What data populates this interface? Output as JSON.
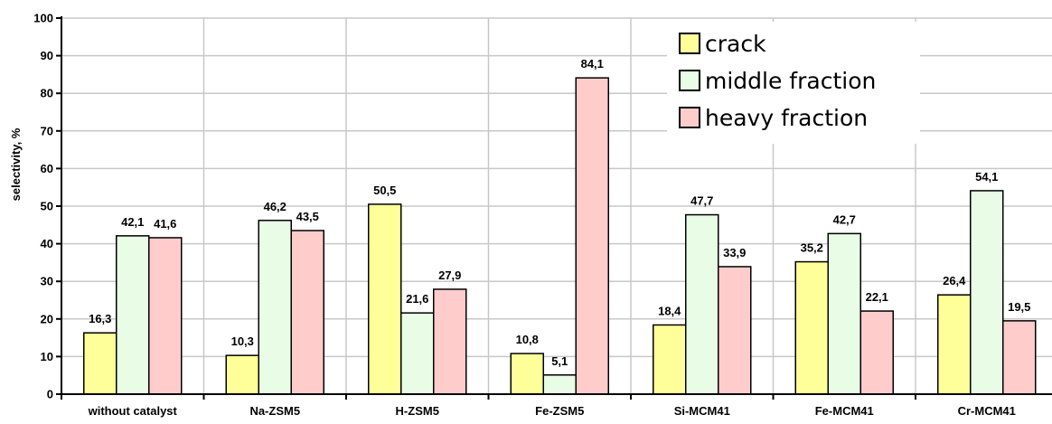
{
  "chart_data": {
    "type": "bar",
    "ylabel": "selectivity, %",
    "xlabel": "",
    "ylim": [
      0,
      100
    ],
    "yticks": [
      "0",
      "10",
      "20",
      "30",
      "40",
      "50",
      "60",
      "70",
      "80",
      "90",
      "100"
    ],
    "grid": true,
    "legend_position": "top-right",
    "categories": [
      "without catalyst",
      "Na-ZSM5",
      "H-ZSM5",
      "Fe-ZSM5",
      "Si-MCM41",
      "Fe-MCM41",
      "Cr-MCM41"
    ],
    "series": [
      {
        "name": "crack",
        "color": "#ffff99",
        "values": [
          16.3,
          10.3,
          50.5,
          10.8,
          18.4,
          35.2,
          26.4
        ],
        "labels": [
          "16,3",
          "10,3",
          "50,5",
          "10,8",
          "18,4",
          "35,2",
          "26,4"
        ]
      },
      {
        "name": "middle fraction",
        "color": "#e8fce6",
        "values": [
          42.1,
          46.2,
          21.6,
          5.1,
          47.7,
          42.7,
          54.1
        ],
        "labels": [
          "42,1",
          "46,2",
          "21,6",
          "5,1",
          "47,7",
          "42,7",
          "54,1"
        ]
      },
      {
        "name": "heavy fraction",
        "color": "#ffcccc",
        "values": [
          41.6,
          43.5,
          27.9,
          84.1,
          33.9,
          22.1,
          19.5
        ],
        "labels": [
          "41,6",
          "43,5",
          "27,9",
          "84,1",
          "33,9",
          "22,1",
          "19,5"
        ]
      }
    ]
  }
}
